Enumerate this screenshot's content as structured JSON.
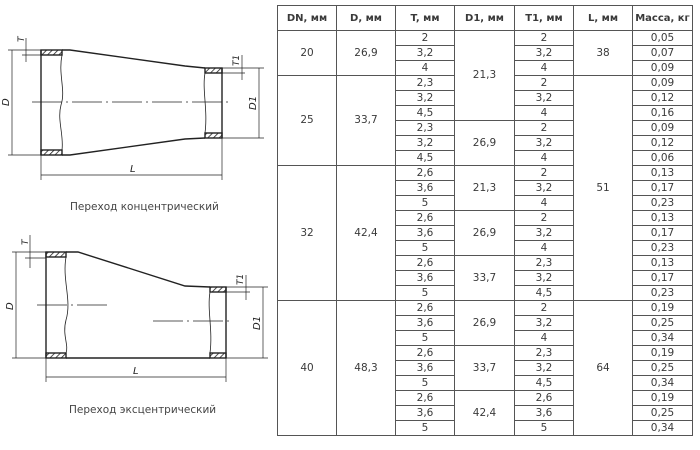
{
  "drawings": {
    "concentric": {
      "caption": "Переход концентрический",
      "labels": {
        "d": "D",
        "t": "T",
        "d1": "D1",
        "t1": "T1",
        "l": "L"
      }
    },
    "eccentric": {
      "caption": "Переход эксцентрический",
      "labels": {
        "d": "D",
        "t": "T",
        "d1": "D1",
        "t1": "T1",
        "l": "L"
      }
    }
  },
  "table": {
    "headers": [
      "DN, мм",
      "D, мм",
      "T, мм",
      "D1, мм",
      "T1, мм",
      "L, мм",
      "Масса, кг"
    ],
    "columns": [
      [
        {
          "v": "20",
          "span": 3
        },
        {
          "v": "25",
          "span": 6
        },
        {
          "v": "32",
          "span": 9
        },
        {
          "v": "40",
          "span": 9
        }
      ],
      [
        {
          "v": "26,9",
          "span": 3
        },
        {
          "v": "33,7",
          "span": 6
        },
        {
          "v": "42,4",
          "span": 9
        },
        {
          "v": "48,3",
          "span": 9
        }
      ],
      [
        {
          "v": "2"
        },
        {
          "v": "3,2"
        },
        {
          "v": "4"
        },
        {
          "v": "2,3"
        },
        {
          "v": "3,2"
        },
        {
          "v": "4,5"
        },
        {
          "v": "2,3"
        },
        {
          "v": "3,2"
        },
        {
          "v": "4,5"
        },
        {
          "v": "2,6"
        },
        {
          "v": "3,6"
        },
        {
          "v": "5"
        },
        {
          "v": "2,6"
        },
        {
          "v": "3,6"
        },
        {
          "v": "5"
        },
        {
          "v": "2,6"
        },
        {
          "v": "3,6"
        },
        {
          "v": "5"
        },
        {
          "v": "2,6"
        },
        {
          "v": "3,6"
        },
        {
          "v": "5"
        },
        {
          "v": "2,6"
        },
        {
          "v": "3,6"
        },
        {
          "v": "5"
        },
        {
          "v": "2,6"
        },
        {
          "v": "3,6"
        },
        {
          "v": "5"
        }
      ],
      [
        {
          "v": "21,3",
          "span": 6
        },
        {
          "v": "26,9",
          "span": 3
        },
        {
          "v": "21,3",
          "span": 3
        },
        {
          "v": "26,9",
          "span": 3
        },
        {
          "v": "33,7",
          "span": 3
        },
        {
          "v": "26,9",
          "span": 3
        },
        {
          "v": "33,7",
          "span": 3
        },
        {
          "v": "42,4",
          "span": 3
        }
      ],
      [
        {
          "v": "2"
        },
        {
          "v": "3,2"
        },
        {
          "v": "4"
        },
        {
          "v": "2"
        },
        {
          "v": "3,2"
        },
        {
          "v": "4"
        },
        {
          "v": "2"
        },
        {
          "v": "3,2"
        },
        {
          "v": "4"
        },
        {
          "v": "2"
        },
        {
          "v": "3,2"
        },
        {
          "v": "4"
        },
        {
          "v": "2"
        },
        {
          "v": "3,2"
        },
        {
          "v": "4"
        },
        {
          "v": "2,3"
        },
        {
          "v": "3,2"
        },
        {
          "v": "4,5"
        },
        {
          "v": "2"
        },
        {
          "v": "3,2"
        },
        {
          "v": "4"
        },
        {
          "v": "2,3"
        },
        {
          "v": "3,2"
        },
        {
          "v": "4,5"
        },
        {
          "v": "2,6"
        },
        {
          "v": "3,6"
        },
        {
          "v": "5"
        }
      ],
      [
        {
          "v": "38",
          "span": 3
        },
        {
          "v": "51",
          "span": 15
        },
        {
          "v": "64",
          "span": 9
        }
      ],
      [
        {
          "v": "0,05"
        },
        {
          "v": "0,07"
        },
        {
          "v": "0,09"
        },
        {
          "v": "0,09"
        },
        {
          "v": "0,12"
        },
        {
          "v": "0,16"
        },
        {
          "v": "0,09"
        },
        {
          "v": "0,12"
        },
        {
          "v": "0,06"
        },
        {
          "v": "0,13"
        },
        {
          "v": "0,17"
        },
        {
          "v": "0,23"
        },
        {
          "v": "0,13"
        },
        {
          "v": "0,17"
        },
        {
          "v": "0,23"
        },
        {
          "v": "0,13"
        },
        {
          "v": "0,17"
        },
        {
          "v": "0,23"
        },
        {
          "v": "0,19"
        },
        {
          "v": "0,25"
        },
        {
          "v": "0,34"
        },
        {
          "v": "0,19"
        },
        {
          "v": "0,25"
        },
        {
          "v": "0,34"
        },
        {
          "v": "0,19"
        },
        {
          "v": "0,25"
        },
        {
          "v": "0,34"
        }
      ]
    ]
  }
}
